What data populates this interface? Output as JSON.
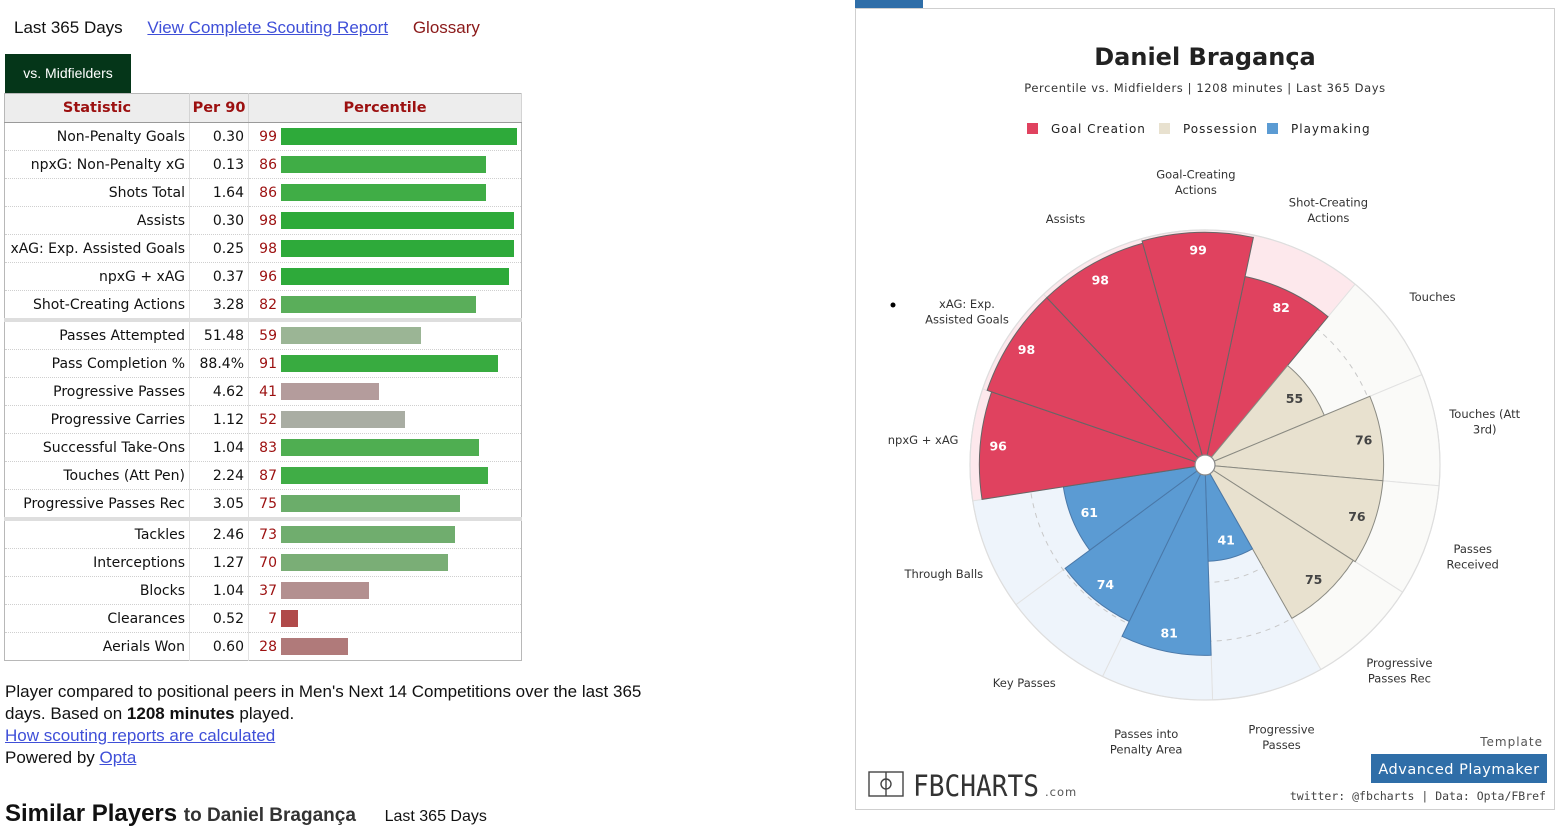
{
  "top_links": {
    "period": "Last 365 Days",
    "report_link": "View Complete Scouting Report",
    "glossary": "Glossary"
  },
  "tab": {
    "label": "vs. Midfielders"
  },
  "table": {
    "headers": [
      "Statistic",
      "Per 90",
      "Percentile"
    ],
    "groups": [
      [
        {
          "stat": "Non-Penalty Goals",
          "per90": "0.30",
          "pct": 99,
          "color": "#2eaa3a"
        },
        {
          "stat": "npxG: Non-Penalty xG",
          "per90": "0.13",
          "pct": 86,
          "color": "#40ad46"
        },
        {
          "stat": "Shots Total",
          "per90": "1.64",
          "pct": 86,
          "color": "#40ad46"
        },
        {
          "stat": "Assists",
          "per90": "0.30",
          "pct": 98,
          "color": "#2eaa3a"
        },
        {
          "stat": "xAG: Exp. Assisted Goals",
          "per90": "0.25",
          "pct": 98,
          "color": "#2eaa3a"
        },
        {
          "stat": "npxG + xAG",
          "per90": "0.37",
          "pct": 96,
          "color": "#2eaa3a"
        },
        {
          "stat": "Shot-Creating Actions",
          "per90": "3.28",
          "pct": 82,
          "color": "#5aae5a"
        }
      ],
      [
        {
          "stat": "Passes Attempted",
          "per90": "51.48",
          "pct": 59,
          "color": "#9bb595"
        },
        {
          "stat": "Pass Completion %",
          "per90": "88.4%",
          "pct": 91,
          "color": "#38ab40"
        },
        {
          "stat": "Progressive Passes",
          "per90": "4.62",
          "pct": 41,
          "color": "#b49c9c"
        },
        {
          "stat": "Progressive Carries",
          "per90": "1.12",
          "pct": 52,
          "color": "#a9ada3"
        },
        {
          "stat": "Successful Take-Ons",
          "per90": "1.04",
          "pct": 83,
          "color": "#4fae51"
        },
        {
          "stat": "Touches (Att Pen)",
          "per90": "2.24",
          "pct": 87,
          "color": "#40ad46"
        },
        {
          "stat": "Progressive Passes Rec",
          "per90": "3.05",
          "pct": 75,
          "color": "#6bad6a"
        }
      ],
      [
        {
          "stat": "Tackles",
          "per90": "2.46",
          "pct": 73,
          "color": "#70ad6e"
        },
        {
          "stat": "Interceptions",
          "per90": "1.27",
          "pct": 70,
          "color": "#7aae76"
        },
        {
          "stat": "Blocks",
          "per90": "1.04",
          "pct": 37,
          "color": "#b39090"
        },
        {
          "stat": "Clearances",
          "per90": "0.52",
          "pct": 7,
          "color": "#b04a4a"
        },
        {
          "stat": "Aerials Won",
          "per90": "0.60",
          "pct": 28,
          "color": "#b07a7a"
        }
      ]
    ]
  },
  "notes": {
    "line_pre": "Player compared to positional peers in Men's Next 14 Competitions over the last 365 days. Based on ",
    "minutes": "1208 minutes",
    "line_post": " played.",
    "how_link": "How scouting reports are calculated",
    "powered_pre": "Powered by ",
    "opta": "Opta"
  },
  "similar": {
    "title": "Similar Players",
    "sub": "to Daniel Bragança",
    "period": "Last 365 Days"
  },
  "chart_data": {
    "type": "polar-bar",
    "title": "Daniel Bragança",
    "subtitle": "Percentile vs. Midfielders | 1208 minutes | Last 365 Days",
    "legend": [
      {
        "name": "Goal Creation",
        "color": "#e0425f"
      },
      {
        "name": "Possession",
        "color": "#e8e1cf"
      },
      {
        "name": "Playmaking",
        "color": "#5b9bd3"
      }
    ],
    "rmax": 100,
    "categories": [
      "Shot-Creating Actions",
      "Touches",
      "Touches (Att 3rd)",
      "Passes Received",
      "Progressive Passes Rec",
      "Progressive Passes",
      "Passes into Penalty Area",
      "Key Passes",
      "Through Balls",
      "npxG + xAG",
      "xAG: Exp. Assisted Goals",
      "Assists",
      "Goal-Creating Actions"
    ],
    "values": [
      82,
      55,
      76,
      76,
      75,
      41,
      81,
      74,
      61,
      96,
      98,
      98,
      99
    ],
    "groups": [
      "Goal Creation",
      "Possession",
      "Possession",
      "Possession",
      "Possession",
      "Playmaking",
      "Playmaking",
      "Playmaking",
      "Playmaking",
      "Goal Creation",
      "Goal Creation",
      "Goal Creation",
      "Goal Creation"
    ],
    "label_lines": [
      [
        "Shot-Creating",
        "Actions"
      ],
      [
        "Touches"
      ],
      [
        "Touches (Att",
        "3rd)"
      ],
      [
        "Passes",
        "Received"
      ],
      [
        "Progressive",
        "Passes Rec"
      ],
      [
        "Progressive",
        "Passes"
      ],
      [
        "Passes into",
        "Penalty Area"
      ],
      [
        "Key Passes"
      ],
      [
        "Through Balls"
      ],
      [
        "npxG + xAG"
      ],
      [
        "xAG: Exp.",
        "Assisted Goals"
      ],
      [
        "Assists"
      ],
      [
        "Goal-Creating",
        "Actions"
      ]
    ]
  },
  "chart_footer": {
    "template_label": "Template",
    "template_name": "Advanced Playmaker",
    "brand": "FBCHARTS",
    "brand_suffix": ".com",
    "credit": "twitter: @fbcharts | Data: Opta/FBref"
  }
}
